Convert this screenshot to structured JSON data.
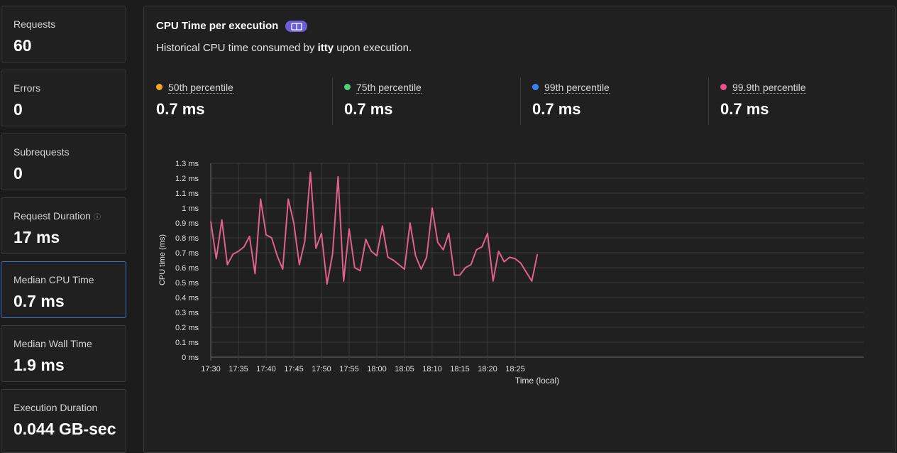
{
  "metrics": [
    {
      "label": "Requests",
      "value": "60"
    },
    {
      "label": "Errors",
      "value": "0"
    },
    {
      "label": "Subrequests",
      "value": "0"
    },
    {
      "label": "Request Duration",
      "value": "17 ms",
      "info_icon": "info-circle-icon"
    },
    {
      "label": "Median CPU Time",
      "value": "0.7 ms",
      "selected": true
    },
    {
      "label": "Median Wall Time",
      "value": "1.9 ms"
    },
    {
      "label": "Execution Duration",
      "value": "0.044 GB-sec"
    }
  ],
  "panel": {
    "title": "CPU Time per execution",
    "badge_icon": "book-icon",
    "badge_color": "#6b5fd6",
    "subtitle_prefix": "Historical CPU time consumed by ",
    "subtitle_bold": "itty",
    "subtitle_suffix": " upon execution."
  },
  "percentiles": [
    {
      "label": "50th percentile",
      "value": "0.7 ms",
      "color": "#f5a623"
    },
    {
      "label": "75th percentile",
      "value": "0.7 ms",
      "color": "#4cd07d"
    },
    {
      "label": "99th percentile",
      "value": "0.7 ms",
      "color": "#3b82f6"
    },
    {
      "label": "99.9th percentile",
      "value": "0.7 ms",
      "color": "#ec4f8a"
    }
  ],
  "chart_data": {
    "type": "line",
    "xlabel": "Time (local)",
    "ylabel": "CPU time (ms)",
    "ylim": [
      0,
      1.3
    ],
    "y_ticks": [
      0,
      0.1,
      0.2,
      0.3,
      0.4,
      0.5,
      0.6,
      0.7,
      0.8,
      0.9,
      1.0,
      1.1,
      1.2,
      1.3
    ],
    "y_tick_labels": [
      "0 ms",
      "0.1 ms",
      "0.2 ms",
      "0.3 ms",
      "0.4 ms",
      "0.5 ms",
      "0.6 ms",
      "0.7 ms",
      "0.8 ms",
      "0.9 ms",
      "1 ms",
      "1.1 ms",
      "1.2 ms",
      "1.3 ms"
    ],
    "x_tick_labels": [
      "17:30",
      "17:35",
      "17:40",
      "17:45",
      "17:50",
      "17:55",
      "18:00",
      "18:05",
      "18:10",
      "18:15",
      "18:20",
      "18:25"
    ],
    "grid": true,
    "line_color": "#e0608e",
    "x": [
      "17:30",
      "17:31",
      "17:32",
      "17:33",
      "17:34",
      "17:35",
      "17:36",
      "17:37",
      "17:38",
      "17:39",
      "17:40",
      "17:41",
      "17:42",
      "17:43",
      "17:44",
      "17:45",
      "17:46",
      "17:47",
      "17:48",
      "17:49",
      "17:50",
      "17:51",
      "17:52",
      "17:53",
      "17:54",
      "17:55",
      "17:56",
      "17:57",
      "17:58",
      "17:59",
      "18:00",
      "18:01",
      "18:02",
      "18:03",
      "18:04",
      "18:05",
      "18:06",
      "18:07",
      "18:08",
      "18:09",
      "18:10",
      "18:11",
      "18:12",
      "18:13",
      "18:14",
      "18:15",
      "18:16",
      "18:17",
      "18:18",
      "18:19",
      "18:20",
      "18:21",
      "18:22",
      "18:23",
      "18:24",
      "18:25",
      "18:26",
      "18:27",
      "18:28",
      "18:29"
    ],
    "series": [
      {
        "values": [
          0.91,
          0.66,
          0.92,
          0.62,
          0.69,
          0.71,
          0.74,
          0.81,
          0.56,
          1.06,
          0.82,
          0.8,
          0.68,
          0.59,
          1.06,
          0.9,
          0.62,
          0.78,
          1.24,
          0.73,
          0.83,
          0.49,
          0.69,
          1.21,
          0.51,
          0.86,
          0.6,
          0.58,
          0.79,
          0.71,
          0.68,
          0.88,
          0.67,
          0.65,
          0.62,
          0.59,
          0.9,
          0.68,
          0.59,
          0.67,
          1.0,
          0.77,
          0.72,
          0.83,
          0.55,
          0.55,
          0.6,
          0.62,
          0.72,
          0.74,
          0.83,
          0.51,
          0.71,
          0.64,
          0.67,
          0.66,
          0.63,
          0.57,
          0.51,
          0.69
        ]
      }
    ]
  }
}
